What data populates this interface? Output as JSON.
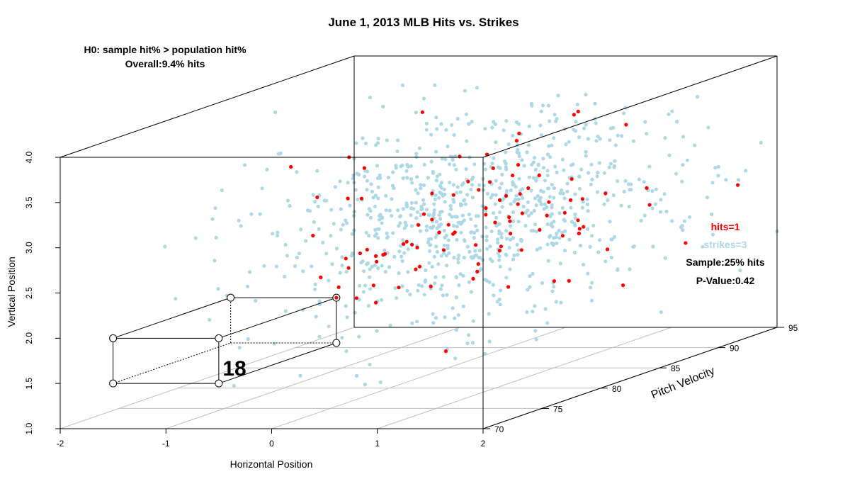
{
  "chart_data": {
    "type": "scatter",
    "title": "June 1, 2013 MLB Hits vs. Strikes",
    "annotations": {
      "hypothesis": "H0: sample hit% > population hit%",
      "overall": "Overall:9.4% hits",
      "hits_label": "hits=1",
      "strikes_label": "strikes=3",
      "sample_label": "Sample:25% hits",
      "pvalue_label": "P-Value:0.42",
      "box_count": "18"
    },
    "x_axis": {
      "label": "Horizontal Position",
      "range": [
        -2,
        2
      ],
      "ticks": [
        "-2",
        "-1",
        "0",
        "1",
        "2"
      ]
    },
    "y_axis": {
      "label": "Vertical Position",
      "range": [
        1.0,
        4.0
      ],
      "ticks": [
        "1.0",
        "1.5",
        "2.0",
        "2.5",
        "3.0",
        "3.5",
        "4.0"
      ]
    },
    "z_axis": {
      "label": "Pitch Velocity",
      "range": [
        70,
        95
      ],
      "ticks": [
        "70",
        "75",
        "80",
        "85",
        "90",
        "95"
      ]
    },
    "selection_box": {
      "x": [
        -1.5,
        -0.5
      ],
      "y": [
        1.5,
        2.0
      ],
      "z": [
        70,
        80
      ]
    },
    "colors": {
      "strike": "#add8e6",
      "hit": "#ff0000",
      "hit_text": "#ff0000",
      "strike_text": "#add8e6"
    },
    "series": [
      {
        "name": "strikes",
        "color": "#add8e6",
        "count_approx": 900,
        "distribution": {
          "x_mean": 0.1,
          "x_sd": 0.75,
          "y_mean": 2.65,
          "y_sd": 0.55,
          "z_mean": 86,
          "z_sd": 6
        }
      },
      {
        "name": "hits",
        "color": "#ff0000",
        "count_approx": 95,
        "distribution": {
          "x_mean": 0.2,
          "x_sd": 0.6,
          "y_mean": 2.6,
          "y_sd": 0.45,
          "z_mean": 86,
          "z_sd": 5
        }
      }
    ]
  }
}
